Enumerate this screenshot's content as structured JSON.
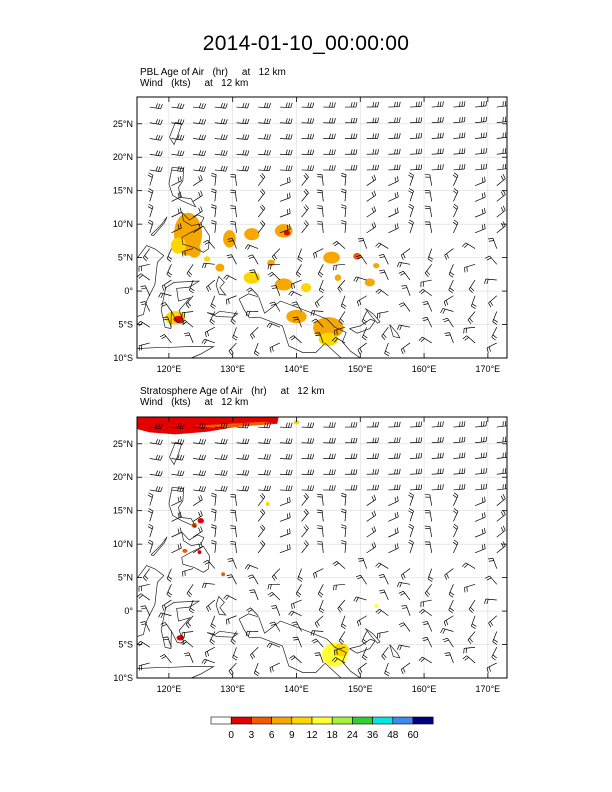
{
  "title": "2014-01-10_00:00:00",
  "panels": [
    {
      "id": "pbl",
      "field_label": "PBL Age of Air   (hr)     at   12 km",
      "wind_label": "Wind   (kts)     at   12 km"
    },
    {
      "id": "strat",
      "field_label": "Stratosphere Age of Air   (hr)     at   12 km",
      "wind_label": "Wind   (kts)     at   12 km"
    }
  ],
  "map": {
    "lon_range": [
      115,
      173
    ],
    "lat_range": [
      -10,
      29
    ],
    "lon_ticks": [
      "120°E",
      "130°E",
      "140°E",
      "150°E",
      "160°E",
      "170°E"
    ],
    "lat_ticks": [
      "25°N",
      "20°N",
      "15°N",
      "10°N",
      "5°N",
      "0°",
      "5°S",
      "10°S"
    ],
    "lon_values": [
      120,
      130,
      140,
      150,
      160,
      170
    ],
    "lat_values": [
      25,
      20,
      15,
      10,
      5,
      0,
      -5,
      -10
    ]
  },
  "colorbar": {
    "labels": [
      "0",
      "3",
      "6",
      "9",
      "12",
      "18",
      "24",
      "36",
      "48",
      "60"
    ],
    "colors": [
      "#ffffff",
      "#e50000",
      "#f25a00",
      "#f7a800",
      "#ffd700",
      "#ffff33",
      "#a5f23c",
      "#2ed12e",
      "#00e5e5",
      "#3c8cf0",
      "#000080"
    ]
  }
}
